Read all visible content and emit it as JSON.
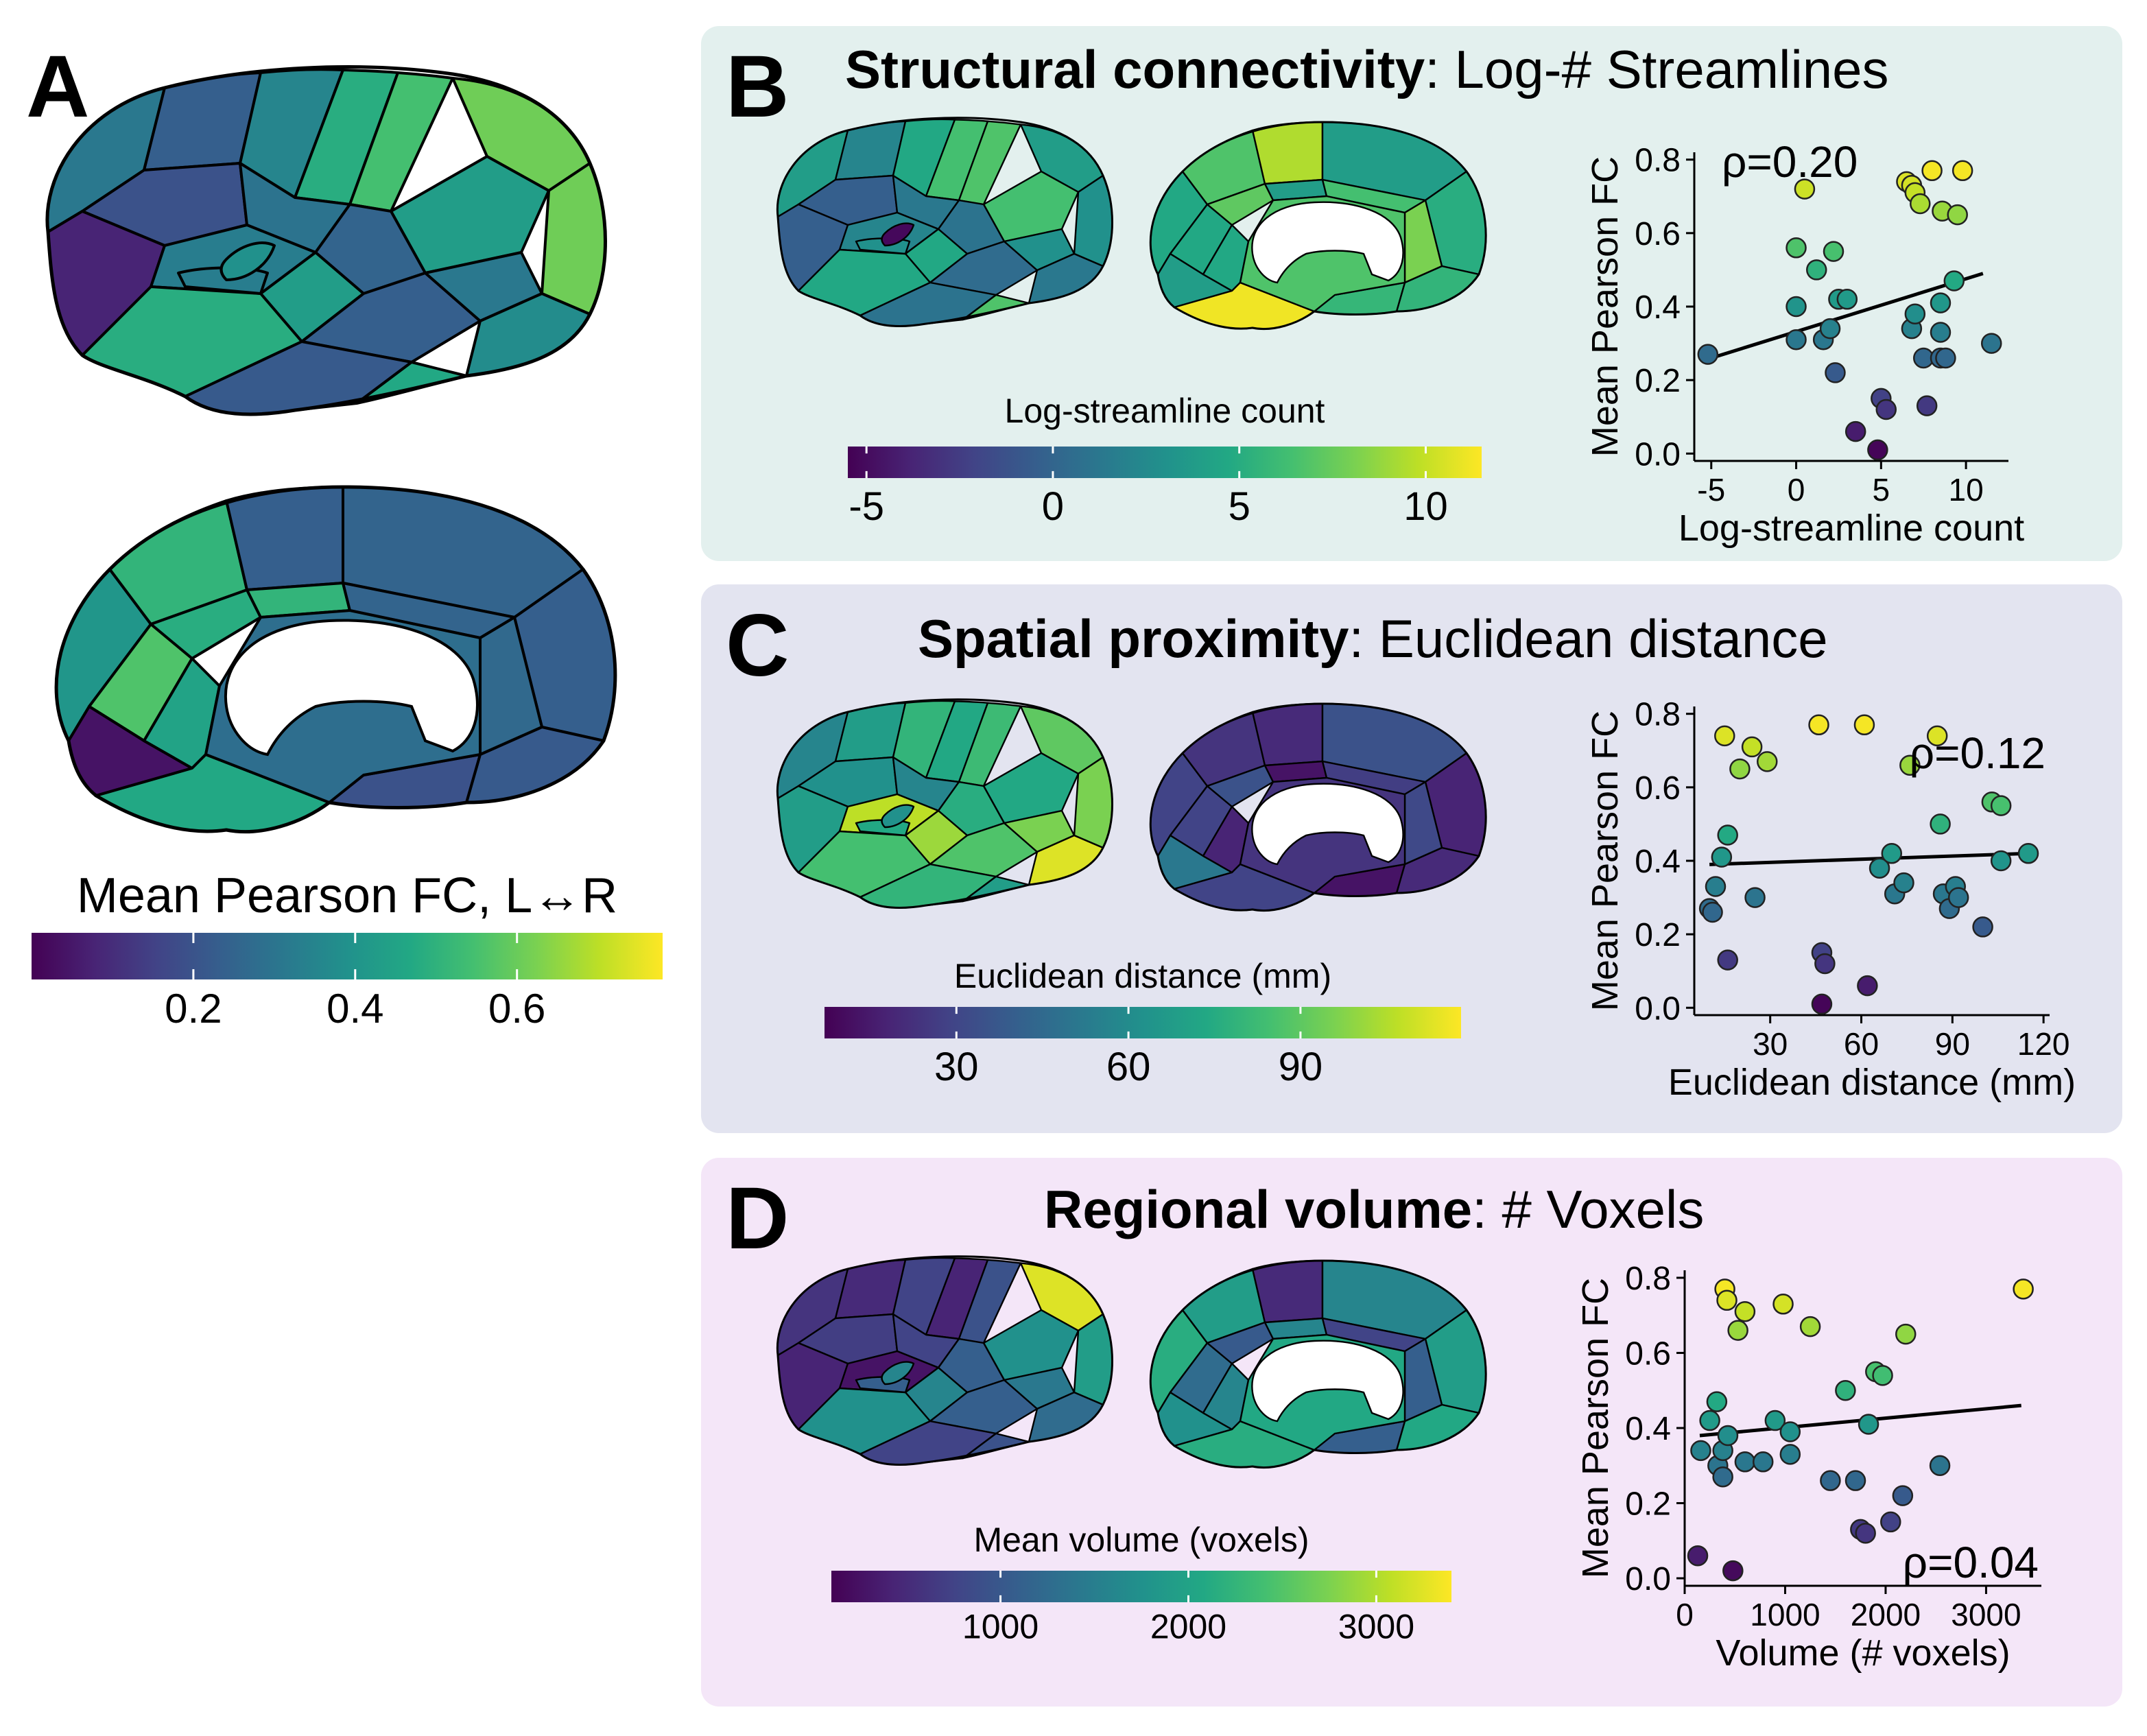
{
  "panels": {
    "A": {
      "letter": "A",
      "colorbar_label": "Mean Pearson FC, L↔R",
      "colorbar_ticks": [
        {
          "label": "0.2",
          "v": 0.2
        },
        {
          "label": "0.4",
          "v": 0.4
        },
        {
          "label": "0.6",
          "v": 0.6
        }
      ],
      "colorbar_range": [
        0.0,
        0.78
      ]
    },
    "B": {
      "letter": "B",
      "title_bold": "Structural connectivity",
      "title_rest": ": Log-# Streamlines",
      "background": "#e3f0ee",
      "colorbar_label": "Log-streamline count",
      "colorbar_ticks": [
        {
          "label": "-5",
          "v": -5
        },
        {
          "label": "0",
          "v": 0
        },
        {
          "label": "5",
          "v": 5
        },
        {
          "label": "10",
          "v": 10
        }
      ],
      "colorbar_range": [
        -5.5,
        11.5
      ]
    },
    "C": {
      "letter": "C",
      "title_bold": "Spatial proximity",
      "title_rest": ": Euclidean distance",
      "background": "#e3e4f0",
      "colorbar_label": "Euclidean distance (mm)",
      "colorbar_ticks": [
        {
          "label": "30",
          "v": 30
        },
        {
          "label": "60",
          "v": 60
        },
        {
          "label": "90",
          "v": 90
        }
      ],
      "colorbar_range": [
        7,
        118
      ]
    },
    "D": {
      "letter": "D",
      "title_bold": "Regional volume",
      "title_rest": ": # Voxels",
      "background": "#f4e6f8",
      "colorbar_label": "Mean volume (voxels)",
      "colorbar_ticks": [
        {
          "label": "1000",
          "v": 1000
        },
        {
          "label": "2000",
          "v": 2000
        },
        {
          "label": "3000",
          "v": 3000
        }
      ],
      "colorbar_range": [
        100,
        3400
      ]
    }
  },
  "colormap": "viridis",
  "chart_data": [
    {
      "type": "scatter",
      "panel": "B",
      "xlabel": "Log-streamline count",
      "ylabel": "Mean Pearson FC",
      "annotation": "ρ=0.20",
      "xlim": [
        -6,
        12.5
      ],
      "ylim": [
        -0.02,
        0.82
      ],
      "xticks": [
        -5,
        0,
        5,
        10
      ],
      "yticks": [
        0.0,
        0.2,
        0.4,
        0.6,
        0.8
      ],
      "fit": [
        [
          -5,
          0.26
        ],
        [
          11,
          0.49
        ]
      ],
      "points": [
        {
          "x": -5.2,
          "y": 0.27
        },
        {
          "x": 0.0,
          "y": 0.56
        },
        {
          "x": 0.0,
          "y": 0.4
        },
        {
          "x": 0.0,
          "y": 0.31
        },
        {
          "x": 0.5,
          "y": 0.72
        },
        {
          "x": 1.2,
          "y": 0.5
        },
        {
          "x": 1.6,
          "y": 0.31
        },
        {
          "x": 2.2,
          "y": 0.55
        },
        {
          "x": 2.0,
          "y": 0.34
        },
        {
          "x": 2.5,
          "y": 0.42
        },
        {
          "x": 3.0,
          "y": 0.42
        },
        {
          "x": 2.3,
          "y": 0.22
        },
        {
          "x": 3.5,
          "y": 0.06
        },
        {
          "x": 4.8,
          "y": 0.01
        },
        {
          "x": 5.0,
          "y": 0.15
        },
        {
          "x": 5.3,
          "y": 0.12
        },
        {
          "x": 6.5,
          "y": 0.74
        },
        {
          "x": 6.8,
          "y": 0.73
        },
        {
          "x": 7.0,
          "y": 0.71
        },
        {
          "x": 7.3,
          "y": 0.68
        },
        {
          "x": 8.0,
          "y": 0.77
        },
        {
          "x": 9.8,
          "y": 0.77
        },
        {
          "x": 8.6,
          "y": 0.66
        },
        {
          "x": 9.5,
          "y": 0.65
        },
        {
          "x": 6.8,
          "y": 0.34
        },
        {
          "x": 7.0,
          "y": 0.38
        },
        {
          "x": 7.5,
          "y": 0.26
        },
        {
          "x": 7.7,
          "y": 0.13
        },
        {
          "x": 8.5,
          "y": 0.33
        },
        {
          "x": 8.5,
          "y": 0.26
        },
        {
          "x": 8.8,
          "y": 0.26
        },
        {
          "x": 8.5,
          "y": 0.41
        },
        {
          "x": 9.3,
          "y": 0.47
        },
        {
          "x": 11.5,
          "y": 0.3
        }
      ]
    },
    {
      "type": "scatter",
      "panel": "C",
      "xlabel": "Euclidean distance (mm)",
      "ylabel": "Mean Pearson FC",
      "annotation": "ρ=0.12",
      "xlim": [
        5,
        122
      ],
      "ylim": [
        -0.02,
        0.82
      ],
      "xticks": [
        30,
        60,
        90,
        120
      ],
      "yticks": [
        0.0,
        0.2,
        0.4,
        0.6,
        0.8
      ],
      "fit": [
        [
          10,
          0.39
        ],
        [
          115,
          0.42
        ]
      ],
      "points": [
        {
          "x": 10,
          "y": 0.27
        },
        {
          "x": 11,
          "y": 0.26
        },
        {
          "x": 12,
          "y": 0.33
        },
        {
          "x": 14,
          "y": 0.41
        },
        {
          "x": 15,
          "y": 0.74
        },
        {
          "x": 16,
          "y": 0.47
        },
        {
          "x": 16,
          "y": 0.13
        },
        {
          "x": 20,
          "y": 0.65
        },
        {
          "x": 24,
          "y": 0.71
        },
        {
          "x": 25,
          "y": 0.3
        },
        {
          "x": 29,
          "y": 0.67
        },
        {
          "x": 46,
          "y": 0.77
        },
        {
          "x": 47,
          "y": 0.15
        },
        {
          "x": 48,
          "y": 0.12
        },
        {
          "x": 47,
          "y": 0.01
        },
        {
          "x": 61,
          "y": 0.77
        },
        {
          "x": 62,
          "y": 0.06
        },
        {
          "x": 66,
          "y": 0.38
        },
        {
          "x": 70,
          "y": 0.42
        },
        {
          "x": 71,
          "y": 0.31
        },
        {
          "x": 74,
          "y": 0.34
        },
        {
          "x": 76,
          "y": 0.66
        },
        {
          "x": 85,
          "y": 0.74
        },
        {
          "x": 86,
          "y": 0.5
        },
        {
          "x": 87,
          "y": 0.31
        },
        {
          "x": 89,
          "y": 0.27
        },
        {
          "x": 91,
          "y": 0.33
        },
        {
          "x": 92,
          "y": 0.3
        },
        {
          "x": 100,
          "y": 0.22
        },
        {
          "x": 103,
          "y": 0.56
        },
        {
          "x": 106,
          "y": 0.55
        },
        {
          "x": 106,
          "y": 0.4
        },
        {
          "x": 115,
          "y": 0.42
        }
      ]
    },
    {
      "type": "scatter",
      "panel": "D",
      "xlabel": "Volume (# voxels)",
      "ylabel": "Mean Pearson FC",
      "annotation": "ρ=0.04",
      "xlim": [
        0,
        3550
      ],
      "ylim": [
        -0.02,
        0.82
      ],
      "xticks": [
        0,
        1000,
        2000,
        3000
      ],
      "yticks": [
        0.0,
        0.2,
        0.4,
        0.6,
        0.8
      ],
      "fit": [
        [
          150,
          0.38
        ],
        [
          3350,
          0.46
        ]
      ],
      "points": [
        {
          "x": 130,
          "y": 0.06
        },
        {
          "x": 160,
          "y": 0.34
        },
        {
          "x": 250,
          "y": 0.42
        },
        {
          "x": 320,
          "y": 0.47
        },
        {
          "x": 330,
          "y": 0.3
        },
        {
          "x": 380,
          "y": 0.27
        },
        {
          "x": 380,
          "y": 0.34
        },
        {
          "x": 400,
          "y": 0.77
        },
        {
          "x": 420,
          "y": 0.74
        },
        {
          "x": 430,
          "y": 0.38
        },
        {
          "x": 480,
          "y": 0.02
        },
        {
          "x": 530,
          "y": 0.66
        },
        {
          "x": 600,
          "y": 0.71
        },
        {
          "x": 600,
          "y": 0.31
        },
        {
          "x": 780,
          "y": 0.31
        },
        {
          "x": 900,
          "y": 0.42
        },
        {
          "x": 980,
          "y": 0.73
        },
        {
          "x": 1050,
          "y": 0.39
        },
        {
          "x": 1050,
          "y": 0.33
        },
        {
          "x": 1250,
          "y": 0.67
        },
        {
          "x": 1450,
          "y": 0.26
        },
        {
          "x": 1600,
          "y": 0.5
        },
        {
          "x": 1700,
          "y": 0.26
        },
        {
          "x": 1750,
          "y": 0.13
        },
        {
          "x": 1800,
          "y": 0.12
        },
        {
          "x": 1830,
          "y": 0.41
        },
        {
          "x": 1900,
          "y": 0.55
        },
        {
          "x": 1970,
          "y": 0.54
        },
        {
          "x": 2050,
          "y": 0.15
        },
        {
          "x": 2170,
          "y": 0.22
        },
        {
          "x": 2200,
          "y": 0.65
        },
        {
          "x": 2540,
          "y": 0.3
        },
        {
          "x": 3370,
          "y": 0.77
        }
      ]
    }
  ],
  "brain_maps": {
    "A": {
      "lateral": [
        0.4,
        0.3,
        0.25,
        0.45,
        0.62,
        0.7,
        0.78,
        0.55,
        0.38,
        0.32,
        0.78,
        0.1,
        0.42,
        0.55,
        0.3,
        0.4,
        0.48,
        0.62,
        0.28,
        0.6,
        0.42,
        0.5
      ],
      "medial": [
        0.52,
        0.65,
        0.3,
        0.32,
        0.3,
        0.28,
        0.72,
        0.62,
        0.65,
        0.32,
        0.34,
        0.05,
        0.58,
        0.25,
        0.6,
        0.36
      ]
    },
    "B": {
      "lateral": [
        0.55,
        0.45,
        0.3,
        0.6,
        0.7,
        0.72,
        0.55,
        0.7,
        0.4,
        0.38,
        0.5,
        0.3,
        0.45,
        0.6,
        0.35,
        0.5,
        0.4,
        0.6,
        0.38,
        0.72,
        0.5,
        0.02
      ],
      "medial": [
        0.6,
        0.72,
        0.88,
        0.55,
        0.62,
        0.65,
        0.6,
        0.75,
        0.55,
        0.7,
        0.8,
        0.55,
        0.6,
        0.66,
        0.98,
        0.72
      ]
    },
    "C": {
      "lateral": [
        0.45,
        0.55,
        0.5,
        0.65,
        0.6,
        0.68,
        0.75,
        0.6,
        0.45,
        0.62,
        0.8,
        0.55,
        0.9,
        0.85,
        0.72,
        0.8,
        0.95,
        0.7,
        0.65,
        0.55,
        0.6,
        0.5
      ],
      "medial": [
        0.2,
        0.15,
        0.12,
        0.25,
        0.1,
        0.12,
        0.2,
        0.25,
        0.05,
        0.18,
        0.22,
        0.4,
        0.1,
        0.05,
        0.2,
        0.15
      ]
    },
    "D": {
      "lateral": [
        0.15,
        0.12,
        0.18,
        0.2,
        0.1,
        0.25,
        0.95,
        0.5,
        0.2,
        0.3,
        0.55,
        0.1,
        0.05,
        0.45,
        0.3,
        0.4,
        0.35,
        0.5,
        0.2,
        0.25,
        0.3,
        0.45
      ],
      "medial": [
        0.62,
        0.55,
        0.12,
        0.45,
        0.55,
        0.6,
        0.35,
        0.28,
        0.45,
        0.2,
        0.3,
        0.5,
        0.45,
        0.3,
        0.62,
        0.6
      ]
    }
  }
}
